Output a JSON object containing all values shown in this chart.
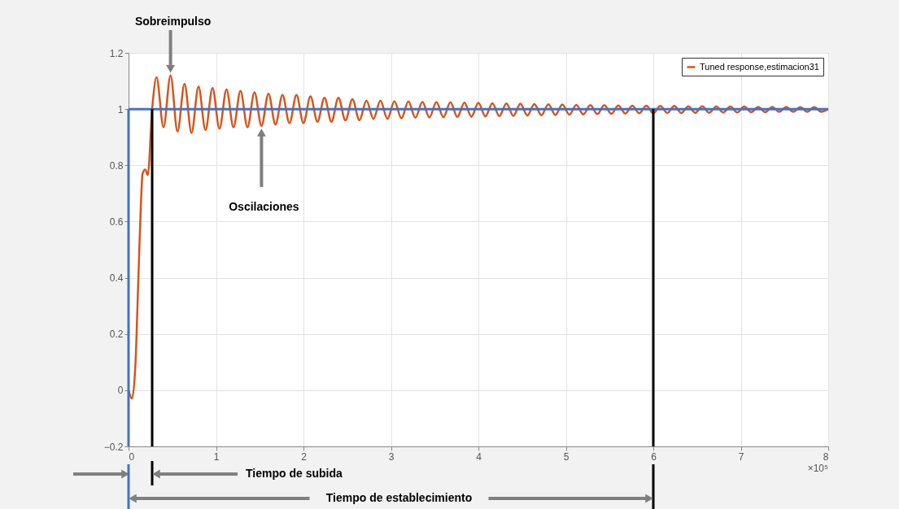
{
  "chart_data": {
    "type": "line",
    "xlabel": "×10⁵",
    "xlim": [
      0,
      8
    ],
    "xticks": [
      0,
      1,
      2,
      3,
      4,
      5,
      6,
      7,
      8
    ],
    "ylim": [
      -0.2,
      1.2
    ],
    "yticks": [
      -0.2,
      0,
      0.2,
      0.4,
      0.6,
      0.8,
      1,
      1.2
    ],
    "grid": true,
    "legend": "top right",
    "series": [
      {
        "name": "Tuned response,estimacion31",
        "color": "#d95319",
        "x": [
          0,
          0.04,
          0.08,
          0.11,
          0.14,
          0.16,
          0.19,
          0.22,
          0.27,
          0.32,
          0.4,
          0.48,
          0.56,
          0.64,
          0.72,
          0.8,
          0.88,
          0.96,
          1.04,
          1.12,
          1.2,
          1.28,
          1.36,
          1.44,
          1.52,
          1.6,
          1.68,
          1.76,
          1.84,
          1.92,
          2.0,
          2.08,
          2.16,
          2.24,
          2.32,
          2.4,
          2.48,
          2.56,
          2.64,
          2.72,
          2.8,
          2.88,
          2.96,
          3.04,
          3.12,
          3.2,
          3.28,
          3.36,
          3.44,
          3.52,
          3.6,
          3.68,
          3.76,
          3.84,
          3.92,
          4.0,
          4.08,
          4.16,
          4.24,
          4.32,
          4.4,
          4.48,
          4.56,
          4.64,
          4.72,
          4.8,
          4.88,
          4.96,
          5.04,
          5.12,
          5.2,
          5.28,
          5.36,
          5.44,
          5.52,
          5.6,
          5.68,
          5.76,
          5.84,
          5.92,
          6.0,
          6.08,
          6.16,
          6.24,
          6.32,
          6.4,
          6.48,
          6.56,
          6.64,
          6.72,
          6.8,
          6.88,
          6.96,
          7.04,
          7.12,
          7.2,
          7.28,
          7.36,
          7.44,
          7.52,
          7.6,
          7.68,
          7.76,
          7.84,
          7.92,
          8.0
        ],
        "values": [
          0,
          -0.03,
          0.1,
          0.375,
          0.65,
          0.77,
          0.785,
          0.765,
          1.0,
          1.113,
          0.935,
          1.12,
          0.92,
          1.09,
          0.915,
          1.08,
          0.925,
          1.075,
          0.93,
          1.07,
          0.935,
          1.065,
          0.935,
          1.06,
          0.94,
          1.055,
          0.945,
          1.05,
          0.95,
          1.05,
          0.95,
          1.045,
          0.955,
          1.04,
          0.955,
          1.04,
          0.96,
          1.035,
          0.96,
          1.03,
          0.965,
          1.03,
          0.965,
          1.028,
          0.967,
          1.027,
          0.969,
          1.026,
          0.97,
          1.025,
          0.971,
          1.024,
          0.972,
          1.023,
          0.973,
          1.022,
          0.974,
          1.021,
          0.975,
          1.02,
          0.976,
          1.019,
          0.977,
          1.018,
          0.978,
          1.017,
          0.979,
          1.016,
          0.98,
          1.015,
          0.981,
          1.014,
          0.982,
          1.014,
          0.983,
          1.013,
          0.984,
          1.012,
          0.985,
          1.012,
          0.985,
          1.011,
          0.986,
          1.011,
          0.986,
          1.01,
          0.987,
          1.01,
          0.987,
          1.009,
          0.988,
          1.009,
          0.988,
          1.009,
          0.989,
          1.008,
          0.989,
          1.008,
          0.99,
          1.008,
          0.99,
          1.007,
          0.99,
          1.007,
          0.99,
          1.0
        ]
      },
      {
        "color": "#4472c4",
        "x": [
          0,
          8
        ],
        "values": [
          1,
          1
        ]
      }
    ],
    "ref_lines": [
      {
        "axis": "x",
        "value": 0.27,
        "label": "Tiempo de subida",
        "color": "#000000"
      },
      {
        "axis": "x",
        "value": 6,
        "color": "#000000"
      },
      {
        "axis": "x",
        "value": 0,
        "color": "#4472c4"
      }
    ],
    "annotations": [
      "Tiempo de establecimiento",
      {
        "text": "Sobreimpulso",
        "x": 0.48,
        "y": 1.12
      },
      {
        "text": "Oscilaciones",
        "x": 1.52,
        "y": 0.94
      }
    ]
  }
}
